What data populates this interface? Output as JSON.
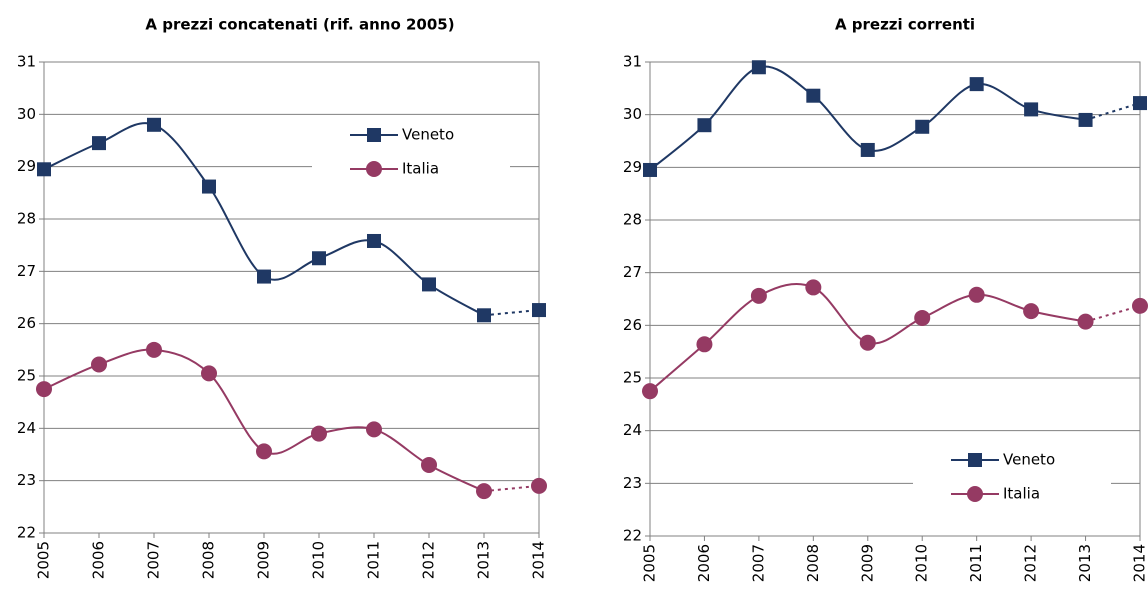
{
  "chart_data": [
    {
      "type": "line",
      "title": "A prezzi concatenati (rif. anno 2005)",
      "categories": [
        "2005",
        "2006",
        "2007",
        "2008",
        "2009",
        "2010",
        "2011",
        "2012",
        "2013",
        "2014"
      ],
      "series": [
        {
          "name": "Veneto",
          "color": "#1f3864",
          "marker": "square",
          "values": [
            28.95,
            29.45,
            29.8,
            28.62,
            26.9,
            27.25,
            27.58,
            26.75,
            26.16,
            26.26
          ]
        },
        {
          "name": "Italia",
          "color": "#953a63",
          "marker": "circle",
          "values": [
            24.75,
            25.22,
            25.5,
            25.05,
            23.56,
            23.9,
            23.98,
            23.3,
            22.8,
            22.9
          ]
        }
      ],
      "ylim": [
        22,
        31
      ],
      "yticks": [
        22,
        23,
        24,
        25,
        26,
        27,
        28,
        29,
        30,
        31
      ],
      "grid": true,
      "legend": "upper right",
      "last_segment_style": "dotted"
    },
    {
      "type": "line",
      "title": "A prezzi correnti",
      "categories": [
        "2005",
        "2006",
        "2007",
        "2008",
        "2009",
        "2010",
        "2011",
        "2012",
        "2013",
        "2014"
      ],
      "series": [
        {
          "name": "Veneto",
          "color": "#1f3864",
          "marker": "square",
          "values": [
            28.95,
            29.8,
            30.9,
            30.36,
            29.33,
            29.77,
            30.58,
            30.1,
            29.9,
            30.22
          ]
        },
        {
          "name": "Italia",
          "color": "#953a63",
          "marker": "circle",
          "values": [
            24.75,
            25.64,
            26.56,
            26.72,
            25.67,
            26.14,
            26.58,
            26.27,
            26.07,
            26.37
          ]
        }
      ],
      "ylim": [
        22,
        31
      ],
      "yticks": [
        22,
        23,
        24,
        25,
        26,
        27,
        28,
        29,
        30,
        31
      ],
      "grid": true,
      "legend": "lower right",
      "last_segment_style": "dotted"
    }
  ]
}
